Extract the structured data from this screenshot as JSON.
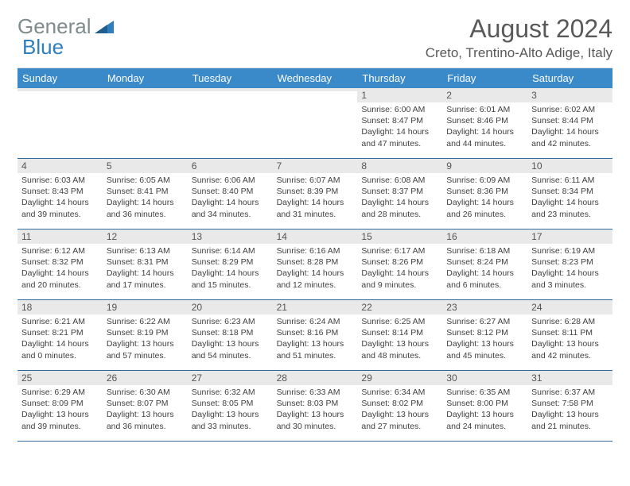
{
  "brand": {
    "part1": "General",
    "part2": "Blue"
  },
  "title": "August 2024",
  "location": "Creto, Trentino-Alto Adige, Italy",
  "colors": {
    "header_bg": "#3a8ac9",
    "header_text": "#ffffff",
    "daynum_bg": "#e9e9e9",
    "week_border": "#2f6a9e",
    "logo_gray": "#7f8c8d",
    "logo_blue": "#2f7fbf",
    "title_color": "#595959"
  },
  "day_names": [
    "Sunday",
    "Monday",
    "Tuesday",
    "Wednesday",
    "Thursday",
    "Friday",
    "Saturday"
  ],
  "weeks": [
    [
      {
        "day": "",
        "lines": []
      },
      {
        "day": "",
        "lines": []
      },
      {
        "day": "",
        "lines": []
      },
      {
        "day": "",
        "lines": []
      },
      {
        "day": "1",
        "lines": [
          "Sunrise: 6:00 AM",
          "Sunset: 8:47 PM",
          "Daylight: 14 hours",
          "and 47 minutes."
        ]
      },
      {
        "day": "2",
        "lines": [
          "Sunrise: 6:01 AM",
          "Sunset: 8:46 PM",
          "Daylight: 14 hours",
          "and 44 minutes."
        ]
      },
      {
        "day": "3",
        "lines": [
          "Sunrise: 6:02 AM",
          "Sunset: 8:44 PM",
          "Daylight: 14 hours",
          "and 42 minutes."
        ]
      }
    ],
    [
      {
        "day": "4",
        "lines": [
          "Sunrise: 6:03 AM",
          "Sunset: 8:43 PM",
          "Daylight: 14 hours",
          "and 39 minutes."
        ]
      },
      {
        "day": "5",
        "lines": [
          "Sunrise: 6:05 AM",
          "Sunset: 8:41 PM",
          "Daylight: 14 hours",
          "and 36 minutes."
        ]
      },
      {
        "day": "6",
        "lines": [
          "Sunrise: 6:06 AM",
          "Sunset: 8:40 PM",
          "Daylight: 14 hours",
          "and 34 minutes."
        ]
      },
      {
        "day": "7",
        "lines": [
          "Sunrise: 6:07 AM",
          "Sunset: 8:39 PM",
          "Daylight: 14 hours",
          "and 31 minutes."
        ]
      },
      {
        "day": "8",
        "lines": [
          "Sunrise: 6:08 AM",
          "Sunset: 8:37 PM",
          "Daylight: 14 hours",
          "and 28 minutes."
        ]
      },
      {
        "day": "9",
        "lines": [
          "Sunrise: 6:09 AM",
          "Sunset: 8:36 PM",
          "Daylight: 14 hours",
          "and 26 minutes."
        ]
      },
      {
        "day": "10",
        "lines": [
          "Sunrise: 6:11 AM",
          "Sunset: 8:34 PM",
          "Daylight: 14 hours",
          "and 23 minutes."
        ]
      }
    ],
    [
      {
        "day": "11",
        "lines": [
          "Sunrise: 6:12 AM",
          "Sunset: 8:32 PM",
          "Daylight: 14 hours",
          "and 20 minutes."
        ]
      },
      {
        "day": "12",
        "lines": [
          "Sunrise: 6:13 AM",
          "Sunset: 8:31 PM",
          "Daylight: 14 hours",
          "and 17 minutes."
        ]
      },
      {
        "day": "13",
        "lines": [
          "Sunrise: 6:14 AM",
          "Sunset: 8:29 PM",
          "Daylight: 14 hours",
          "and 15 minutes."
        ]
      },
      {
        "day": "14",
        "lines": [
          "Sunrise: 6:16 AM",
          "Sunset: 8:28 PM",
          "Daylight: 14 hours",
          "and 12 minutes."
        ]
      },
      {
        "day": "15",
        "lines": [
          "Sunrise: 6:17 AM",
          "Sunset: 8:26 PM",
          "Daylight: 14 hours",
          "and 9 minutes."
        ]
      },
      {
        "day": "16",
        "lines": [
          "Sunrise: 6:18 AM",
          "Sunset: 8:24 PM",
          "Daylight: 14 hours",
          "and 6 minutes."
        ]
      },
      {
        "day": "17",
        "lines": [
          "Sunrise: 6:19 AM",
          "Sunset: 8:23 PM",
          "Daylight: 14 hours",
          "and 3 minutes."
        ]
      }
    ],
    [
      {
        "day": "18",
        "lines": [
          "Sunrise: 6:21 AM",
          "Sunset: 8:21 PM",
          "Daylight: 14 hours",
          "and 0 minutes."
        ]
      },
      {
        "day": "19",
        "lines": [
          "Sunrise: 6:22 AM",
          "Sunset: 8:19 PM",
          "Daylight: 13 hours",
          "and 57 minutes."
        ]
      },
      {
        "day": "20",
        "lines": [
          "Sunrise: 6:23 AM",
          "Sunset: 8:18 PM",
          "Daylight: 13 hours",
          "and 54 minutes."
        ]
      },
      {
        "day": "21",
        "lines": [
          "Sunrise: 6:24 AM",
          "Sunset: 8:16 PM",
          "Daylight: 13 hours",
          "and 51 minutes."
        ]
      },
      {
        "day": "22",
        "lines": [
          "Sunrise: 6:25 AM",
          "Sunset: 8:14 PM",
          "Daylight: 13 hours",
          "and 48 minutes."
        ]
      },
      {
        "day": "23",
        "lines": [
          "Sunrise: 6:27 AM",
          "Sunset: 8:12 PM",
          "Daylight: 13 hours",
          "and 45 minutes."
        ]
      },
      {
        "day": "24",
        "lines": [
          "Sunrise: 6:28 AM",
          "Sunset: 8:11 PM",
          "Daylight: 13 hours",
          "and 42 minutes."
        ]
      }
    ],
    [
      {
        "day": "25",
        "lines": [
          "Sunrise: 6:29 AM",
          "Sunset: 8:09 PM",
          "Daylight: 13 hours",
          "and 39 minutes."
        ]
      },
      {
        "day": "26",
        "lines": [
          "Sunrise: 6:30 AM",
          "Sunset: 8:07 PM",
          "Daylight: 13 hours",
          "and 36 minutes."
        ]
      },
      {
        "day": "27",
        "lines": [
          "Sunrise: 6:32 AM",
          "Sunset: 8:05 PM",
          "Daylight: 13 hours",
          "and 33 minutes."
        ]
      },
      {
        "day": "28",
        "lines": [
          "Sunrise: 6:33 AM",
          "Sunset: 8:03 PM",
          "Daylight: 13 hours",
          "and 30 minutes."
        ]
      },
      {
        "day": "29",
        "lines": [
          "Sunrise: 6:34 AM",
          "Sunset: 8:02 PM",
          "Daylight: 13 hours",
          "and 27 minutes."
        ]
      },
      {
        "day": "30",
        "lines": [
          "Sunrise: 6:35 AM",
          "Sunset: 8:00 PM",
          "Daylight: 13 hours",
          "and 24 minutes."
        ]
      },
      {
        "day": "31",
        "lines": [
          "Sunrise: 6:37 AM",
          "Sunset: 7:58 PM",
          "Daylight: 13 hours",
          "and 21 minutes."
        ]
      }
    ]
  ]
}
